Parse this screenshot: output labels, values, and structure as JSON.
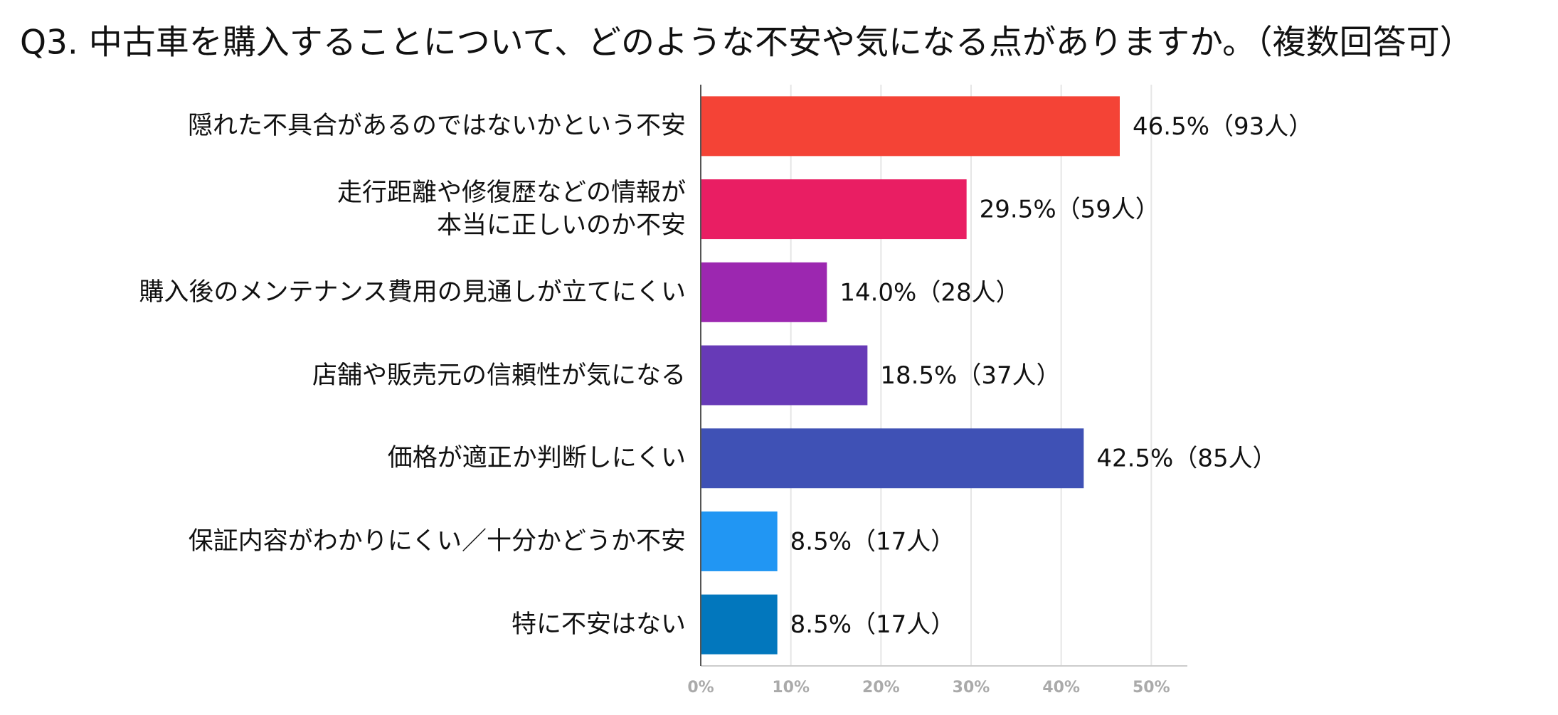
{
  "chart_data": {
    "type": "bar",
    "orientation": "horizontal",
    "title": "Q3. 中古車を購入することについて、どのような不安や気になる点がありますか。（複数回答可）",
    "categories": [
      "隠れた不具合があるのではないかという不安",
      "走行距離や修復歴などの情報が\n本当に正しいのか不安",
      "購入後のメンテナンス費用の見通しが立てにくい",
      "店舗や販売元の信頼性が気になる",
      "価格が適正か判断しにくい",
      "保証内容がわかりにくい／十分かどうか不安",
      "特に不安はない"
    ],
    "values": [
      46.5,
      29.5,
      14.0,
      18.5,
      42.5,
      8.5,
      8.5
    ],
    "value_labels": [
      "46.5%（93人）",
      "29.5%（59人）",
      "14.0%（28人）",
      "18.5%（37人）",
      "42.5%（85人）",
      "8.5%（17人）",
      "8.5%（17人）"
    ],
    "colors": [
      "#f44336",
      "#e91e63",
      "#9c27b0",
      "#673ab7",
      "#3f51b5",
      "#2196f3",
      "#0277bd"
    ],
    "xlim": [
      0,
      54
    ],
    "xticks": [
      {
        "value": 0,
        "label": "0%"
      },
      {
        "value": 10,
        "label": "10%"
      },
      {
        "value": 20,
        "label": "20%"
      },
      {
        "value": 30,
        "label": "30%"
      },
      {
        "value": 40,
        "label": "40%"
      },
      {
        "value": 50,
        "label": "50%"
      }
    ],
    "grid": true
  }
}
